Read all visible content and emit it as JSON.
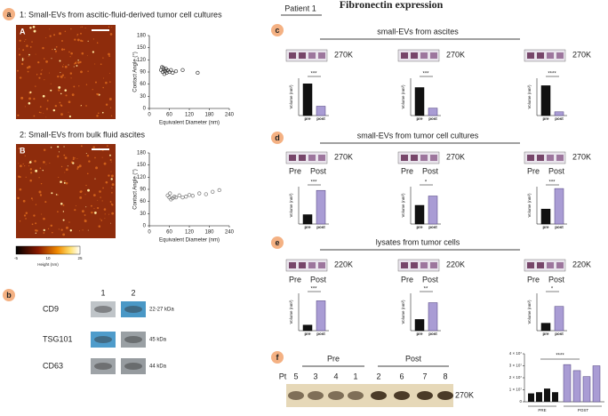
{
  "panel_a": {
    "label": "a",
    "title1": "1: Small-EVs from ascitic-fluid-derived tumor cell cultures",
    "title2": "2: Small-EVs from bulk fluid ascites",
    "image_labels": [
      "A",
      "B"
    ],
    "scatter": {
      "xlabel": "Equivalent Diameter (nm)",
      "ylabel": "Contact Angle (°)",
      "xlim": [
        0,
        240
      ],
      "ylim": [
        0,
        180
      ],
      "xticks": [
        0,
        60,
        120,
        180,
        240
      ],
      "yticks": [
        0,
        30,
        60,
        90,
        120,
        150,
        180
      ],
      "series": [
        {
          "x": [
            35,
            40,
            42,
            45,
            48,
            50,
            52,
            55,
            38,
            44,
            60,
            65,
            70,
            80,
            100,
            145
          ],
          "y": [
            95,
            90,
            100,
            85,
            92,
            98,
            88,
            94,
            102,
            96,
            90,
            95,
            88,
            92,
            95,
            88
          ]
        },
        {
          "x": [
            55,
            60,
            62,
            65,
            70,
            75,
            80,
            90,
            100,
            110,
            120,
            130,
            150,
            170,
            190,
            210
          ],
          "y": [
            75,
            70,
            80,
            65,
            68,
            72,
            70,
            75,
            70,
            72,
            76,
            74,
            80,
            78,
            84,
            88
          ]
        }
      ]
    },
    "colorbar": {
      "ticks": [
        -5,
        10,
        25
      ],
      "label": "Height (nm)"
    }
  },
  "panel_b": {
    "label": "b",
    "lanes": [
      "1",
      "2"
    ],
    "rows": [
      {
        "name": "CD9",
        "size": "22-27 kDa"
      },
      {
        "name": "TSG101",
        "size": "45 kDa"
      },
      {
        "name": "CD63",
        "size": "44 kDa"
      }
    ]
  },
  "header": {
    "patient": "Patient 1",
    "title": "Fibronectin expression"
  },
  "pre_post": [
    "Pre",
    "Post"
  ],
  "bar_labels": [
    "pre",
    "post"
  ],
  "bar_axis": {
    "label": "Volume (nm³)",
    "ylim": [
      0,
      1
    ]
  },
  "panels": [
    {
      "label": "c",
      "title": "small-EVs from ascites",
      "marker": "270K",
      "show_pre_post": false,
      "stars": [
        "***",
        "***",
        "****"
      ],
      "values": [
        [
          0.85,
          0.25
        ],
        [
          0.75,
          0.2
        ],
        [
          0.8,
          0.1
        ]
      ]
    },
    {
      "label": "d",
      "title": "small-EVs from tumor cell cultures",
      "marker": "270K",
      "show_pre_post": true,
      "stars": [
        "***",
        "*",
        "***"
      ],
      "values": [
        [
          0.25,
          0.9
        ],
        [
          0.5,
          0.75
        ],
        [
          0.4,
          0.95
        ]
      ]
    },
    {
      "label": "e",
      "title": "lysates from tumor cells",
      "marker": "220K",
      "show_pre_post": true,
      "stars": [
        "***",
        "**",
        "*"
      ],
      "values": [
        [
          0.15,
          0.8
        ],
        [
          0.3,
          0.75
        ],
        [
          0.2,
          0.65
        ]
      ]
    }
  ],
  "panel_f": {
    "label": "f",
    "groups": [
      "Pre",
      "Post"
    ],
    "pt_label": "Pt",
    "patients": [
      "5",
      "3",
      "4",
      "1",
      "2",
      "6",
      "7",
      "8"
    ],
    "marker": "270K",
    "chart": {
      "ylim": [
        0,
        40000000
      ],
      "yticks": [
        0,
        {
          "value": 10000000,
          "label": "1 × 10⁷"
        },
        {
          "value": 20000000,
          "label": "2 × 10⁷"
        },
        {
          "value": 30000000,
          "label": "3 × 10⁷"
        },
        {
          "value": 40000000,
          "label": "4 × 10⁷"
        }
      ],
      "pre": [
        7000000,
        8000000,
        11000000,
        8000000
      ],
      "post": [
        31000000,
        26000000,
        21000000,
        30000000
      ],
      "categories": [
        "PRE",
        "POST"
      ],
      "stars": "****"
    }
  }
}
